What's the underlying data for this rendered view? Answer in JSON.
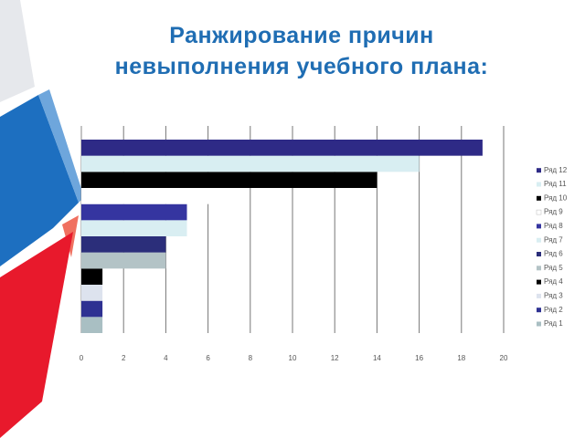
{
  "chart_data": {
    "type": "barh",
    "title": "Ранжирование причин\nневыполнения  учебного плана:",
    "xlim": [
      0,
      20
    ],
    "xticks": [
      0,
      2,
      4,
      6,
      8,
      10,
      12,
      14,
      16,
      18,
      20
    ],
    "grid": true,
    "legend": "right",
    "series": [
      {
        "name": "Ряд 1",
        "color": "#a9bfc3",
        "values": [
          1
        ]
      },
      {
        "name": "Ряд 2",
        "color": "#2e3192",
        "values": [
          1
        ]
      },
      {
        "name": "Ряд 3",
        "color": "#dde3ee",
        "values": [
          1
        ]
      },
      {
        "name": "Ряд 4",
        "color": "#000000",
        "values": [
          1
        ]
      },
      {
        "name": "Ряд 5",
        "color": "#b3c3c6",
        "values": [
          4
        ]
      },
      {
        "name": "Ряд 6",
        "color": "#2b2e7a",
        "values": [
          4
        ]
      },
      {
        "name": "Ряд 7",
        "color": "#d9eef2",
        "values": [
          5
        ]
      },
      {
        "name": "Ряд 8",
        "color": "#3535a0",
        "values": [
          5
        ]
      },
      {
        "name": "Ряд 9",
        "color": "#ffffff",
        "values": [
          7
        ]
      },
      {
        "name": "Ряд 10",
        "color": "#000000",
        "values": [
          14
        ]
      },
      {
        "name": "Ряд 11",
        "color": "#d8eef2",
        "values": [
          16
        ]
      },
      {
        "name": "Ряд 12",
        "color": "#2e2a86",
        "values": [
          19
        ]
      }
    ]
  }
}
